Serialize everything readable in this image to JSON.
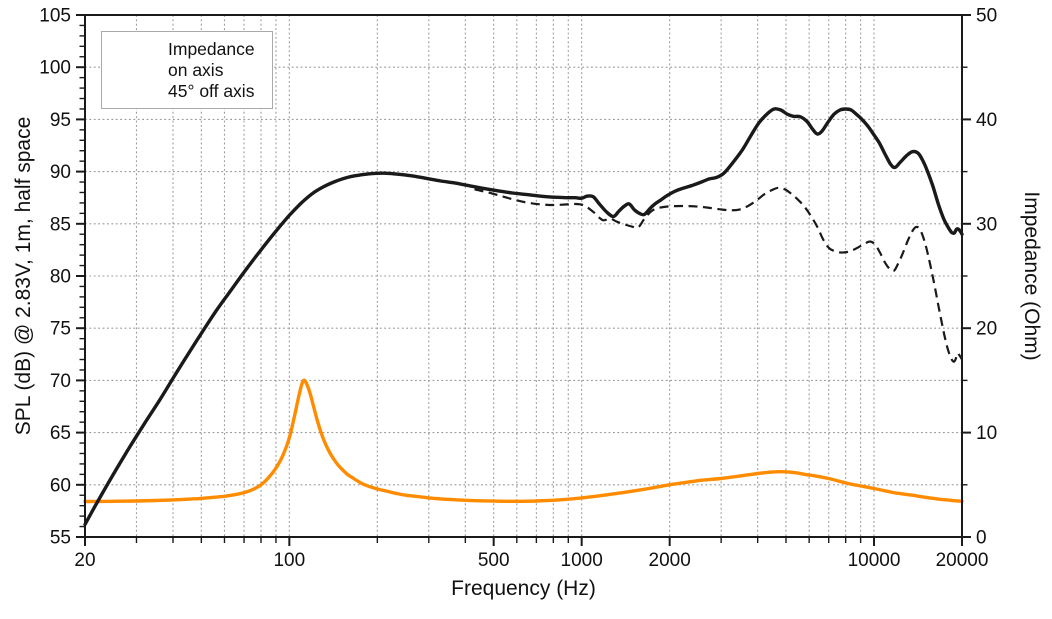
{
  "chart_data": {
    "type": "line",
    "xlabel": "Frequency (Hz)",
    "ylabel_left": "SPL (dB) @ 2.83V, 1m, half space",
    "ylabel_right": "Impedance (Ohm)",
    "x_scale": "log",
    "x_range": [
      20,
      20000
    ],
    "y_left_range": [
      55,
      105
    ],
    "y_right_range": [
      0,
      50
    ],
    "grid": "dotted",
    "colors": {
      "axis": "#1a1a1a",
      "grid": "#999999",
      "impedance": "#ff8c00",
      "spl": "#1a1a1a"
    },
    "x_ticks_all": [
      20,
      30,
      40,
      50,
      60,
      70,
      80,
      90,
      100,
      200,
      300,
      400,
      500,
      600,
      700,
      800,
      900,
      1000,
      2000,
      3000,
      4000,
      5000,
      6000,
      7000,
      8000,
      9000,
      10000,
      20000
    ],
    "x_major_ticks": [
      {
        "value": 20,
        "label": "20"
      },
      {
        "value": 100,
        "label": "100"
      },
      {
        "value": 500,
        "label": "500"
      },
      {
        "value": 1000,
        "label": "1000"
      },
      {
        "value": 2000,
        "label": "2000"
      },
      {
        "value": 10000,
        "label": "10000"
      },
      {
        "value": 20000,
        "label": "20000"
      }
    ],
    "y_left_major_ticks": [
      {
        "value": 55,
        "label": "55"
      },
      {
        "value": 60,
        "label": "60"
      },
      {
        "value": 65,
        "label": "65"
      },
      {
        "value": 70,
        "label": "70"
      },
      {
        "value": 75,
        "label": "75"
      },
      {
        "value": 80,
        "label": "80"
      },
      {
        "value": 85,
        "label": "85"
      },
      {
        "value": 90,
        "label": "90"
      },
      {
        "value": 95,
        "label": "95"
      },
      {
        "value": 100,
        "label": "100"
      },
      {
        "value": 105,
        "label": "105"
      }
    ],
    "y_left_minor_step": 1,
    "y_right_major_ticks": [
      {
        "value": 0,
        "label": "0"
      },
      {
        "value": 10,
        "label": "10"
      },
      {
        "value": 20,
        "label": "20"
      },
      {
        "value": 30,
        "label": "30"
      },
      {
        "value": 40,
        "label": "40"
      },
      {
        "value": 50,
        "label": "50"
      }
    ],
    "y_right_minor_step": 5,
    "legend": {
      "position": "top-left",
      "entries": [
        {
          "label": "Impedance",
          "color": "#ff8c00",
          "style": "solid"
        },
        {
          "label": "on axis",
          "color": "#1a1a1a",
          "style": "solid"
        },
        {
          "label": "45° off axis",
          "color": "#1a1a1a",
          "style": "dashed"
        }
      ]
    },
    "series": [
      {
        "name": "Impedance",
        "axis": "right",
        "unit": "Ohm",
        "color": "#ff8c00",
        "style": "solid",
        "width": 3.4,
        "points": [
          [
            20,
            3.4
          ],
          [
            25,
            3.42
          ],
          [
            30,
            3.45
          ],
          [
            35,
            3.5
          ],
          [
            40,
            3.55
          ],
          [
            45,
            3.62
          ],
          [
            50,
            3.7
          ],
          [
            55,
            3.8
          ],
          [
            60,
            3.9
          ],
          [
            65,
            4.05
          ],
          [
            70,
            4.25
          ],
          [
            75,
            4.55
          ],
          [
            80,
            5.0
          ],
          [
            85,
            5.7
          ],
          [
            90,
            6.6
          ],
          [
            95,
            7.8
          ],
          [
            100,
            9.5
          ],
          [
            104,
            11.5
          ],
          [
            107,
            13.1
          ],
          [
            110,
            14.5
          ],
          [
            112,
            15.0
          ],
          [
            114,
            14.8
          ],
          [
            117,
            14.0
          ],
          [
            120,
            12.9
          ],
          [
            124,
            11.4
          ],
          [
            128,
            10.1
          ],
          [
            133,
            8.9
          ],
          [
            138,
            8.0
          ],
          [
            144,
            7.2
          ],
          [
            150,
            6.6
          ],
          [
            158,
            6.0
          ],
          [
            166,
            5.6
          ],
          [
            175,
            5.2
          ],
          [
            185,
            4.9
          ],
          [
            200,
            4.6
          ],
          [
            215,
            4.4
          ],
          [
            230,
            4.2
          ],
          [
            250,
            4.0
          ],
          [
            270,
            3.9
          ],
          [
            300,
            3.75
          ],
          [
            330,
            3.65
          ],
          [
            360,
            3.58
          ],
          [
            400,
            3.52
          ],
          [
            450,
            3.47
          ],
          [
            500,
            3.44
          ],
          [
            560,
            3.42
          ],
          [
            630,
            3.42
          ],
          [
            700,
            3.45
          ],
          [
            800,
            3.52
          ],
          [
            900,
            3.62
          ],
          [
            1000,
            3.75
          ],
          [
            1150,
            3.95
          ],
          [
            1300,
            4.15
          ],
          [
            1500,
            4.4
          ],
          [
            1700,
            4.65
          ],
          [
            2000,
            5.0
          ],
          [
            2300,
            5.25
          ],
          [
            2600,
            5.45
          ],
          [
            3000,
            5.6
          ],
          [
            3400,
            5.8
          ],
          [
            3800,
            6.0
          ],
          [
            4200,
            6.15
          ],
          [
            4600,
            6.25
          ],
          [
            5000,
            6.25
          ],
          [
            5400,
            6.15
          ],
          [
            5800,
            6.0
          ],
          [
            6300,
            5.85
          ],
          [
            7000,
            5.6
          ],
          [
            7700,
            5.3
          ],
          [
            8400,
            5.05
          ],
          [
            9200,
            4.85
          ],
          [
            10000,
            4.65
          ],
          [
            11000,
            4.4
          ],
          [
            12000,
            4.2
          ],
          [
            13500,
            4.0
          ],
          [
            15000,
            3.8
          ],
          [
            17000,
            3.6
          ],
          [
            18500,
            3.5
          ],
          [
            20000,
            3.42
          ]
        ]
      },
      {
        "name": "on axis",
        "axis": "left",
        "unit": "dB",
        "color": "#1a1a1a",
        "style": "solid",
        "width": 3.4,
        "points": [
          [
            20,
            56.2
          ],
          [
            22,
            58.3
          ],
          [
            25,
            61.0
          ],
          [
            28,
            63.3
          ],
          [
            32,
            65.9
          ],
          [
            36,
            68.1
          ],
          [
            40,
            70.2
          ],
          [
            45,
            72.5
          ],
          [
            50,
            74.5
          ],
          [
            56,
            76.6
          ],
          [
            63,
            78.6
          ],
          [
            71,
            80.6
          ],
          [
            80,
            82.5
          ],
          [
            90,
            84.3
          ],
          [
            100,
            85.8
          ],
          [
            110,
            87.0
          ],
          [
            120,
            87.9
          ],
          [
            130,
            88.5
          ],
          [
            142,
            89.0
          ],
          [
            156,
            89.4
          ],
          [
            172,
            89.65
          ],
          [
            190,
            89.8
          ],
          [
            212,
            89.85
          ],
          [
            235,
            89.75
          ],
          [
            262,
            89.6
          ],
          [
            295,
            89.35
          ],
          [
            330,
            89.1
          ],
          [
            370,
            88.9
          ],
          [
            420,
            88.6
          ],
          [
            470,
            88.35
          ],
          [
            520,
            88.15
          ],
          [
            580,
            87.95
          ],
          [
            650,
            87.8
          ],
          [
            720,
            87.65
          ],
          [
            800,
            87.55
          ],
          [
            880,
            87.5
          ],
          [
            950,
            87.5
          ],
          [
            1000,
            87.45
          ],
          [
            1045,
            87.65
          ],
          [
            1095,
            87.6
          ],
          [
            1150,
            86.9
          ],
          [
            1220,
            86.1
          ],
          [
            1285,
            85.7
          ],
          [
            1340,
            86.2
          ],
          [
            1400,
            86.7
          ],
          [
            1455,
            86.9
          ],
          [
            1520,
            86.3
          ],
          [
            1590,
            85.95
          ],
          [
            1640,
            85.9
          ],
          [
            1705,
            86.4
          ],
          [
            1780,
            86.9
          ],
          [
            1870,
            87.3
          ],
          [
            1960,
            87.7
          ],
          [
            2080,
            88.1
          ],
          [
            2220,
            88.4
          ],
          [
            2400,
            88.7
          ],
          [
            2570,
            89.0
          ],
          [
            2730,
            89.3
          ],
          [
            2900,
            89.45
          ],
          [
            3080,
            89.9
          ],
          [
            3300,
            90.9
          ],
          [
            3550,
            92.1
          ],
          [
            3800,
            93.5
          ],
          [
            4050,
            94.7
          ],
          [
            4300,
            95.5
          ],
          [
            4550,
            96.0
          ],
          [
            4800,
            95.9
          ],
          [
            5050,
            95.5
          ],
          [
            5300,
            95.3
          ],
          [
            5600,
            95.25
          ],
          [
            5900,
            94.8
          ],
          [
            6150,
            94.1
          ],
          [
            6400,
            93.6
          ],
          [
            6650,
            93.9
          ],
          [
            6950,
            94.7
          ],
          [
            7300,
            95.5
          ],
          [
            7650,
            95.9
          ],
          [
            8000,
            96.0
          ],
          [
            8350,
            95.9
          ],
          [
            8700,
            95.5
          ],
          [
            9100,
            95.0
          ],
          [
            9500,
            94.4
          ],
          [
            9900,
            93.7
          ],
          [
            10400,
            92.8
          ],
          [
            10900,
            91.7
          ],
          [
            11400,
            90.7
          ],
          [
            11800,
            90.4
          ],
          [
            12300,
            90.9
          ],
          [
            12900,
            91.5
          ],
          [
            13500,
            91.9
          ],
          [
            14100,
            91.8
          ],
          [
            14600,
            91.2
          ],
          [
            15200,
            90.1
          ],
          [
            15900,
            88.6
          ],
          [
            16600,
            86.9
          ],
          [
            17300,
            85.5
          ],
          [
            17900,
            84.7
          ],
          [
            18400,
            84.2
          ],
          [
            18800,
            84.1
          ],
          [
            19200,
            84.5
          ],
          [
            19600,
            84.4
          ],
          [
            20000,
            84.0
          ]
        ]
      },
      {
        "name": "45° off axis",
        "axis": "left",
        "unit": "dB",
        "color": "#1a1a1a",
        "style": "dashed",
        "width": 2.2,
        "points": [
          [
            430,
            88.3
          ],
          [
            480,
            88.0
          ],
          [
            540,
            87.6
          ],
          [
            600,
            87.25
          ],
          [
            660,
            87.0
          ],
          [
            730,
            86.85
          ],
          [
            800,
            86.8
          ],
          [
            880,
            86.85
          ],
          [
            950,
            86.9
          ],
          [
            1020,
            86.75
          ],
          [
            1100,
            86.1
          ],
          [
            1180,
            85.35
          ],
          [
            1250,
            85.5
          ],
          [
            1320,
            85.2
          ],
          [
            1400,
            84.95
          ],
          [
            1480,
            84.75
          ],
          [
            1560,
            84.65
          ],
          [
            1640,
            85.5
          ],
          [
            1730,
            86.2
          ],
          [
            1820,
            86.5
          ],
          [
            1950,
            86.65
          ],
          [
            2100,
            86.7
          ],
          [
            2300,
            86.7
          ],
          [
            2500,
            86.65
          ],
          [
            2700,
            86.55
          ],
          [
            2950,
            86.4
          ],
          [
            3200,
            86.3
          ],
          [
            3450,
            86.35
          ],
          [
            3700,
            86.7
          ],
          [
            3950,
            87.2
          ],
          [
            4200,
            87.8
          ],
          [
            4450,
            88.2
          ],
          [
            4700,
            88.45
          ],
          [
            4950,
            88.3
          ],
          [
            5200,
            87.9
          ],
          [
            5500,
            87.3
          ],
          [
            5800,
            86.6
          ],
          [
            6100,
            85.7
          ],
          [
            6400,
            84.7
          ],
          [
            6700,
            83.5
          ],
          [
            7000,
            82.7
          ],
          [
            7300,
            82.4
          ],
          [
            7700,
            82.25
          ],
          [
            8100,
            82.3
          ],
          [
            8500,
            82.5
          ],
          [
            8900,
            82.8
          ],
          [
            9300,
            83.1
          ],
          [
            9700,
            83.3
          ],
          [
            10100,
            83.0
          ],
          [
            10500,
            82.2
          ],
          [
            10900,
            81.3
          ],
          [
            11300,
            80.7
          ],
          [
            11700,
            80.5
          ],
          [
            12100,
            81.2
          ],
          [
            12600,
            82.3
          ],
          [
            13100,
            83.5
          ],
          [
            13600,
            84.4
          ],
          [
            14000,
            84.7
          ],
          [
            14400,
            84.4
          ],
          [
            14900,
            83.3
          ],
          [
            15400,
            81.7
          ],
          [
            16000,
            79.5
          ],
          [
            16600,
            77.2
          ],
          [
            17200,
            75.0
          ],
          [
            17800,
            73.2
          ],
          [
            18300,
            72.2
          ],
          [
            18700,
            71.8
          ],
          [
            19000,
            72.0
          ],
          [
            19300,
            72.6
          ],
          [
            19600,
            72.4
          ],
          [
            20000,
            72.0
          ]
        ]
      }
    ]
  }
}
